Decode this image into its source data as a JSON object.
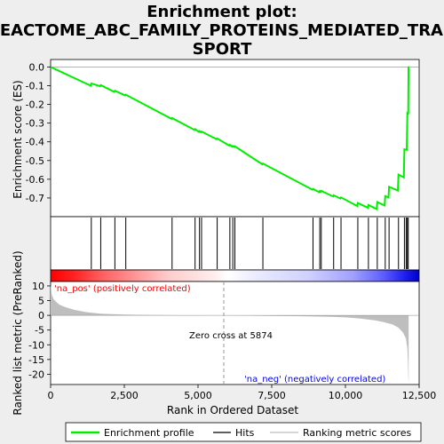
{
  "chart_data": {
    "type": "line",
    "title_lines": [
      "Enrichment plot:",
      "REACTOME_ABC_FAMILY_PROTEINS_MEDIATED_TRAN",
      "SPORT"
    ],
    "xlabel": "Rank in Ordered Dataset",
    "ylabel_top": "Enrichment score (ES)",
    "ylabel_bottom": "Ranked list metric (PreRanked)",
    "xlim": [
      0,
      12500
    ],
    "es_ylim": [
      -0.8,
      0.04
    ],
    "metric_ylim": [
      -23.5,
      11.5
    ],
    "x_ticks": [
      0,
      2500,
      5000,
      7500,
      10000,
      12500
    ],
    "x_tick_labels": [
      "0",
      "2,500",
      "5,000",
      "7,500",
      "10,000",
      "12,500"
    ],
    "es_ticks": [
      0.0,
      -0.1,
      -0.2,
      -0.3,
      -0.4,
      -0.5,
      -0.6,
      -0.7
    ],
    "es_tick_labels": [
      "0.0",
      "-0.1",
      "-0.2",
      "-0.3",
      "-0.4",
      "-0.5",
      "-0.6",
      "-0.7"
    ],
    "metric_ticks": [
      10,
      5,
      0,
      -5,
      -10,
      -15,
      -20
    ],
    "metric_tick_labels": [
      "10",
      "5",
      "0",
      "-5",
      "-10",
      "-15",
      "-20"
    ],
    "hits": [
      1380,
      1700,
      2180,
      2550,
      4120,
      4900,
      5050,
      5120,
      5650,
      6080,
      6180,
      6250,
      7200,
      8900,
      9130,
      9180,
      9600,
      9850,
      10420,
      10780,
      11080,
      11350,
      11480,
      11800,
      12000,
      12060,
      12100,
      12130
    ],
    "es_series": {
      "name": "Enrichment profile",
      "x": [
        0,
        1360,
        1380,
        1680,
        1700,
        2160,
        2180,
        2530,
        2550,
        4100,
        4120,
        4880,
        4900,
        5030,
        5050,
        5100,
        5120,
        5630,
        5650,
        6060,
        6080,
        6160,
        6180,
        6230,
        6250,
        7180,
        7200,
        8880,
        8900,
        9110,
        9130,
        9160,
        9180,
        9580,
        9600,
        9830,
        9850,
        10400,
        10420,
        10760,
        10780,
        11060,
        11080,
        11330,
        11350,
        11460,
        11480,
        11780,
        11800,
        11980,
        12000,
        12040,
        12060,
        12080,
        12100,
        12110,
        12130,
        12140
      ],
      "y": [
        0.0,
        -0.1,
        -0.088,
        -0.103,
        -0.097,
        -0.133,
        -0.127,
        -0.152,
        -0.148,
        -0.277,
        -0.273,
        -0.336,
        -0.332,
        -0.347,
        -0.343,
        -0.349,
        -0.345,
        -0.386,
        -0.382,
        -0.42,
        -0.416,
        -0.426,
        -0.422,
        -0.428,
        -0.424,
        -0.52,
        -0.516,
        -0.656,
        -0.652,
        -0.669,
        -0.663,
        -0.668,
        -0.662,
        -0.692,
        -0.686,
        -0.703,
        -0.697,
        -0.743,
        -0.727,
        -0.752,
        -0.737,
        -0.76,
        -0.722,
        -0.74,
        -0.69,
        -0.697,
        -0.64,
        -0.66,
        -0.575,
        -0.59,
        -0.44,
        -0.442,
        -0.44,
        -0.442,
        -0.25,
        -0.252,
        -0.25,
        0.003
      ]
    },
    "metric_series": {
      "x": [
        0,
        40,
        100,
        200,
        300,
        500,
        800,
        1200,
        1700,
        2500,
        3500,
        4500,
        5874,
        7000,
        8500,
        9500,
        10000,
        10500,
        11000,
        11300,
        11600,
        11800,
        11950,
        12050,
        12100,
        12120,
        12135,
        12145
      ],
      "y": [
        10.5,
        7.0,
        5.5,
        4.5,
        3.6,
        2.8,
        1.9,
        1.1,
        0.55,
        0.25,
        0.12,
        0.05,
        0.0,
        -0.15,
        -0.3,
        -0.5,
        -0.7,
        -1.1,
        -1.7,
        -2.3,
        -3.1,
        -4.2,
        -5.8,
        -7.8,
        -11.0,
        -16.0,
        -21.5,
        -23.0
      ]
    },
    "zero_cross_x": 5874,
    "zero_cross_label": "Zero cross at 5874",
    "pos_label": "'na_pos' (positively correlated)",
    "neg_label": "'na_neg' (negatively correlated)",
    "legend": {
      "items": [
        "Enrichment profile",
        "Hits",
        "Ranking metric scores"
      ],
      "placement": "bottom"
    },
    "colors": {
      "es_line": "#00ee00",
      "hits": "#000000",
      "metric_fill": "#bebebe",
      "pos_text": "#ff0000",
      "neg_text": "#0000ff",
      "zero_line": "#999999"
    }
  }
}
